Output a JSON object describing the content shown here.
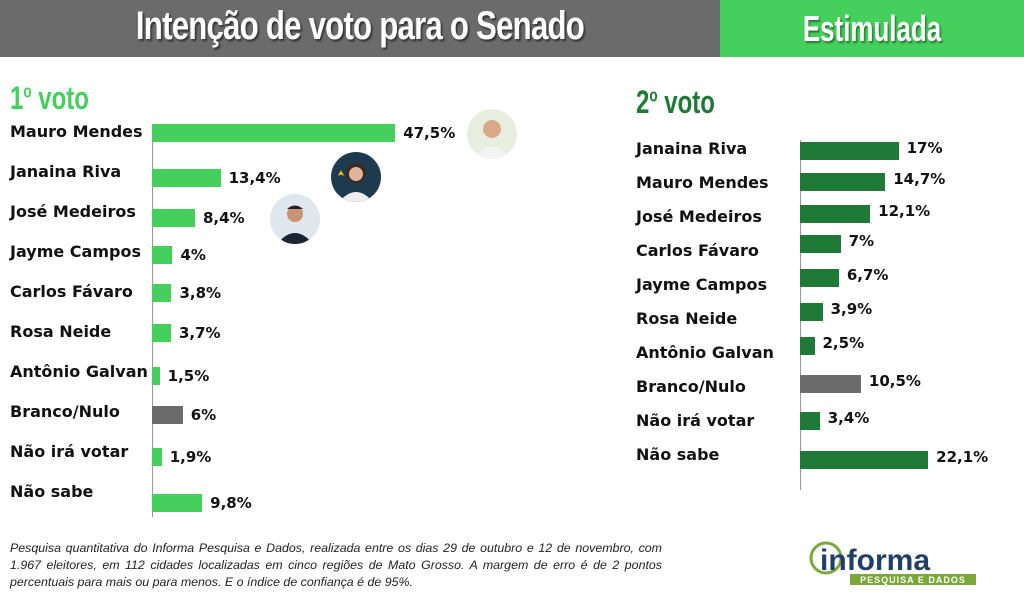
{
  "header": {
    "title": "Intenção de voto para o Senado",
    "subtitle": "Estimulada"
  },
  "colors": {
    "first_vote_bar": "#45cf5c",
    "second_vote_bar": "#1f7a38",
    "other_bar": "#6b6b6b",
    "header_gray": "#6b6b6b",
    "header_green": "#45cf5c"
  },
  "chart_data": [
    {
      "type": "bar",
      "orientation": "horizontal",
      "title": "1º voto",
      "title_base": "1",
      "title_sup": "o",
      "title_rest": " voto",
      "categories": [
        "Mauro Mendes",
        "Janaina Riva",
        "José Medeiros",
        "Jayme Campos",
        "Carlos Fávaro",
        "Rosa Neide",
        "Antônio Galvan",
        "Branco/Nulo",
        "Não irá votar",
        "Não sabe"
      ],
      "values": [
        47.5,
        13.4,
        8.4,
        4,
        3.8,
        3.7,
        1.5,
        6,
        1.9,
        9.8
      ],
      "labels": [
        "47,5%",
        "13,4%",
        "8,4%",
        "4%",
        "3,8%",
        "3,7%",
        "1,5%",
        "6%",
        "1,9%",
        "9,8%"
      ],
      "unit": "%"
    },
    {
      "type": "bar",
      "orientation": "horizontal",
      "title": "2º voto",
      "title_base": "2",
      "title_sup": "o",
      "title_rest": " voto",
      "categories": [
        "Janaina Riva",
        "Mauro Mendes",
        "José Medeiros",
        "Carlos Fávaro",
        "Jayme Campos",
        "Rosa Neide",
        "Antônio Galvan",
        "Branco/Nulo",
        "Não irá votar",
        "Não sabe"
      ],
      "values": [
        17,
        14.7,
        12.1,
        7,
        6.7,
        3.9,
        2.5,
        10.5,
        3.4,
        22.1
      ],
      "labels": [
        "17%",
        "14,7%",
        "12,1%",
        "7%",
        "6,7%",
        "3,9%",
        "2,5%",
        "10,5%",
        "3,4%",
        "22,1%"
      ],
      "unit": "%"
    }
  ],
  "footnote": "Pesquisa quantitativa do Informa Pesquisa e Dados, realizada entre os dias 29 de outubro e 12 de novembro, com 1.967 eleitores, em 112 cidades localizadas em cinco regiões de Mato Grosso. A margem de erro é de 2 pontos percentuais para mais ou para menos. E o índice de confiança é de 95%.",
  "logo": {
    "name": "informa",
    "tagline": "PESQUISA E DADOS"
  }
}
